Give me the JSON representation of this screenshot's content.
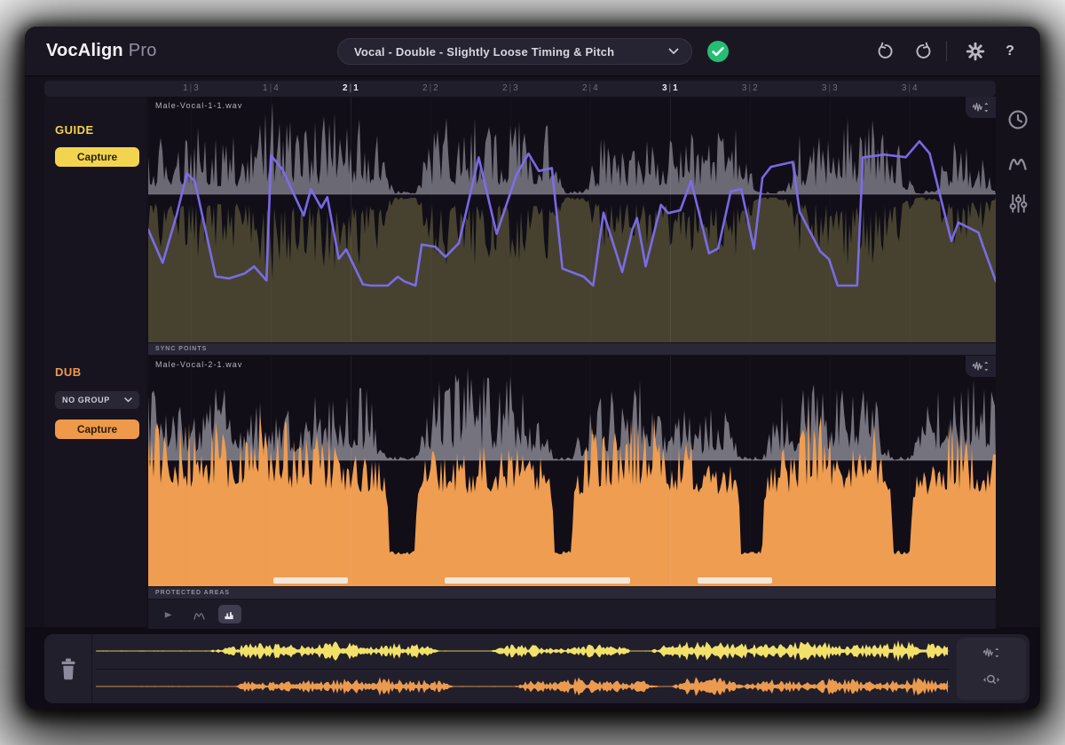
{
  "app": {
    "brand": "VocAlign",
    "brand_suffix": "Pro"
  },
  "topbar": {
    "preset_value": "Vocal - Double - Slightly Loose Timing & Pitch",
    "help_label": "?"
  },
  "sidebar": {
    "guide": {
      "label": "GUIDE",
      "capture_label": "Capture"
    },
    "dub": {
      "label": "DUB",
      "group_value": "NO GROUP",
      "capture_label": "Capture"
    }
  },
  "ruler": {
    "ticks": [
      {
        "bar": "1",
        "beat": "3"
      },
      {
        "bar": "1",
        "beat": "4"
      },
      {
        "bar": "2",
        "beat": "1"
      },
      {
        "bar": "2",
        "beat": "2"
      },
      {
        "bar": "2",
        "beat": "3"
      },
      {
        "bar": "2",
        "beat": "4"
      },
      {
        "bar": "3",
        "beat": "1"
      },
      {
        "bar": "3",
        "beat": "2"
      },
      {
        "bar": "3",
        "beat": "3"
      },
      {
        "bar": "3",
        "beat": "4"
      }
    ]
  },
  "tracks": {
    "guide": {
      "filename": "Male-Vocal-1-1.wav"
    },
    "dub": {
      "filename": "Male-Vocal-2-1.wav"
    },
    "sync_points_label": "SYNC POINTS",
    "protected_areas_label": "PROTECTED AREAS",
    "protected_areas": [
      {
        "start": 0.148,
        "width": 0.088
      },
      {
        "start": 0.35,
        "width": 0.219
      },
      {
        "start": 0.648,
        "width": 0.088
      }
    ]
  },
  "colors": {
    "guide_accent": "#f3d44e",
    "dub_accent": "#ee9a4a",
    "pitch_line": "#7e6ef0",
    "waveform_gray": "#8f8d99",
    "guide_lower_fill": "#4a4630",
    "dub_lower_fill": "#ef9d50",
    "success_green": "#25bd72",
    "mini_guide_wave": "#f2e169",
    "mini_dub_wave": "#eb9a4e",
    "protected_bar": "#f2eee6"
  }
}
